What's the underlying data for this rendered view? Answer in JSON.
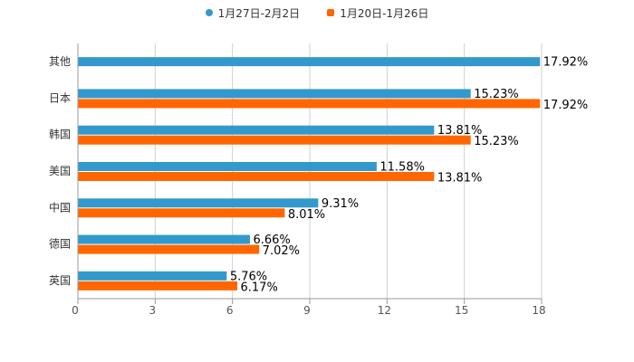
{
  "chart_data": {
    "type": "bar",
    "orientation": "horizontal",
    "title": "",
    "xlabel": "",
    "ylabel": "",
    "categories": [
      "其他",
      "日本",
      "韩国",
      "美国",
      "中国",
      "德国",
      "英国"
    ],
    "series": [
      {
        "name": "1月27日-2月2日",
        "color": "#3399CC",
        "values": [
          17.92,
          15.23,
          13.81,
          11.58,
          9.31,
          6.66,
          5.76
        ],
        "labels": [
          "17.92%",
          "15.23%",
          "13.81%",
          "11.58%",
          "9.31%",
          "6.66%",
          "5.76%"
        ]
      },
      {
        "name": "1月20日-1月26日",
        "color": "#FF6600",
        "values": [
          null,
          17.92,
          15.23,
          13.81,
          8.01,
          7.02,
          6.17
        ],
        "labels": [
          null,
          "17.92%",
          "15.23%",
          "13.81%",
          "8.01%",
          "7.02%",
          "6.17%"
        ]
      }
    ],
    "xlim": [
      0,
      18
    ],
    "xticks": [
      "0",
      "3",
      "6",
      "9",
      "12",
      "15",
      "18"
    ],
    "grid": true,
    "legend": "top-center"
  }
}
